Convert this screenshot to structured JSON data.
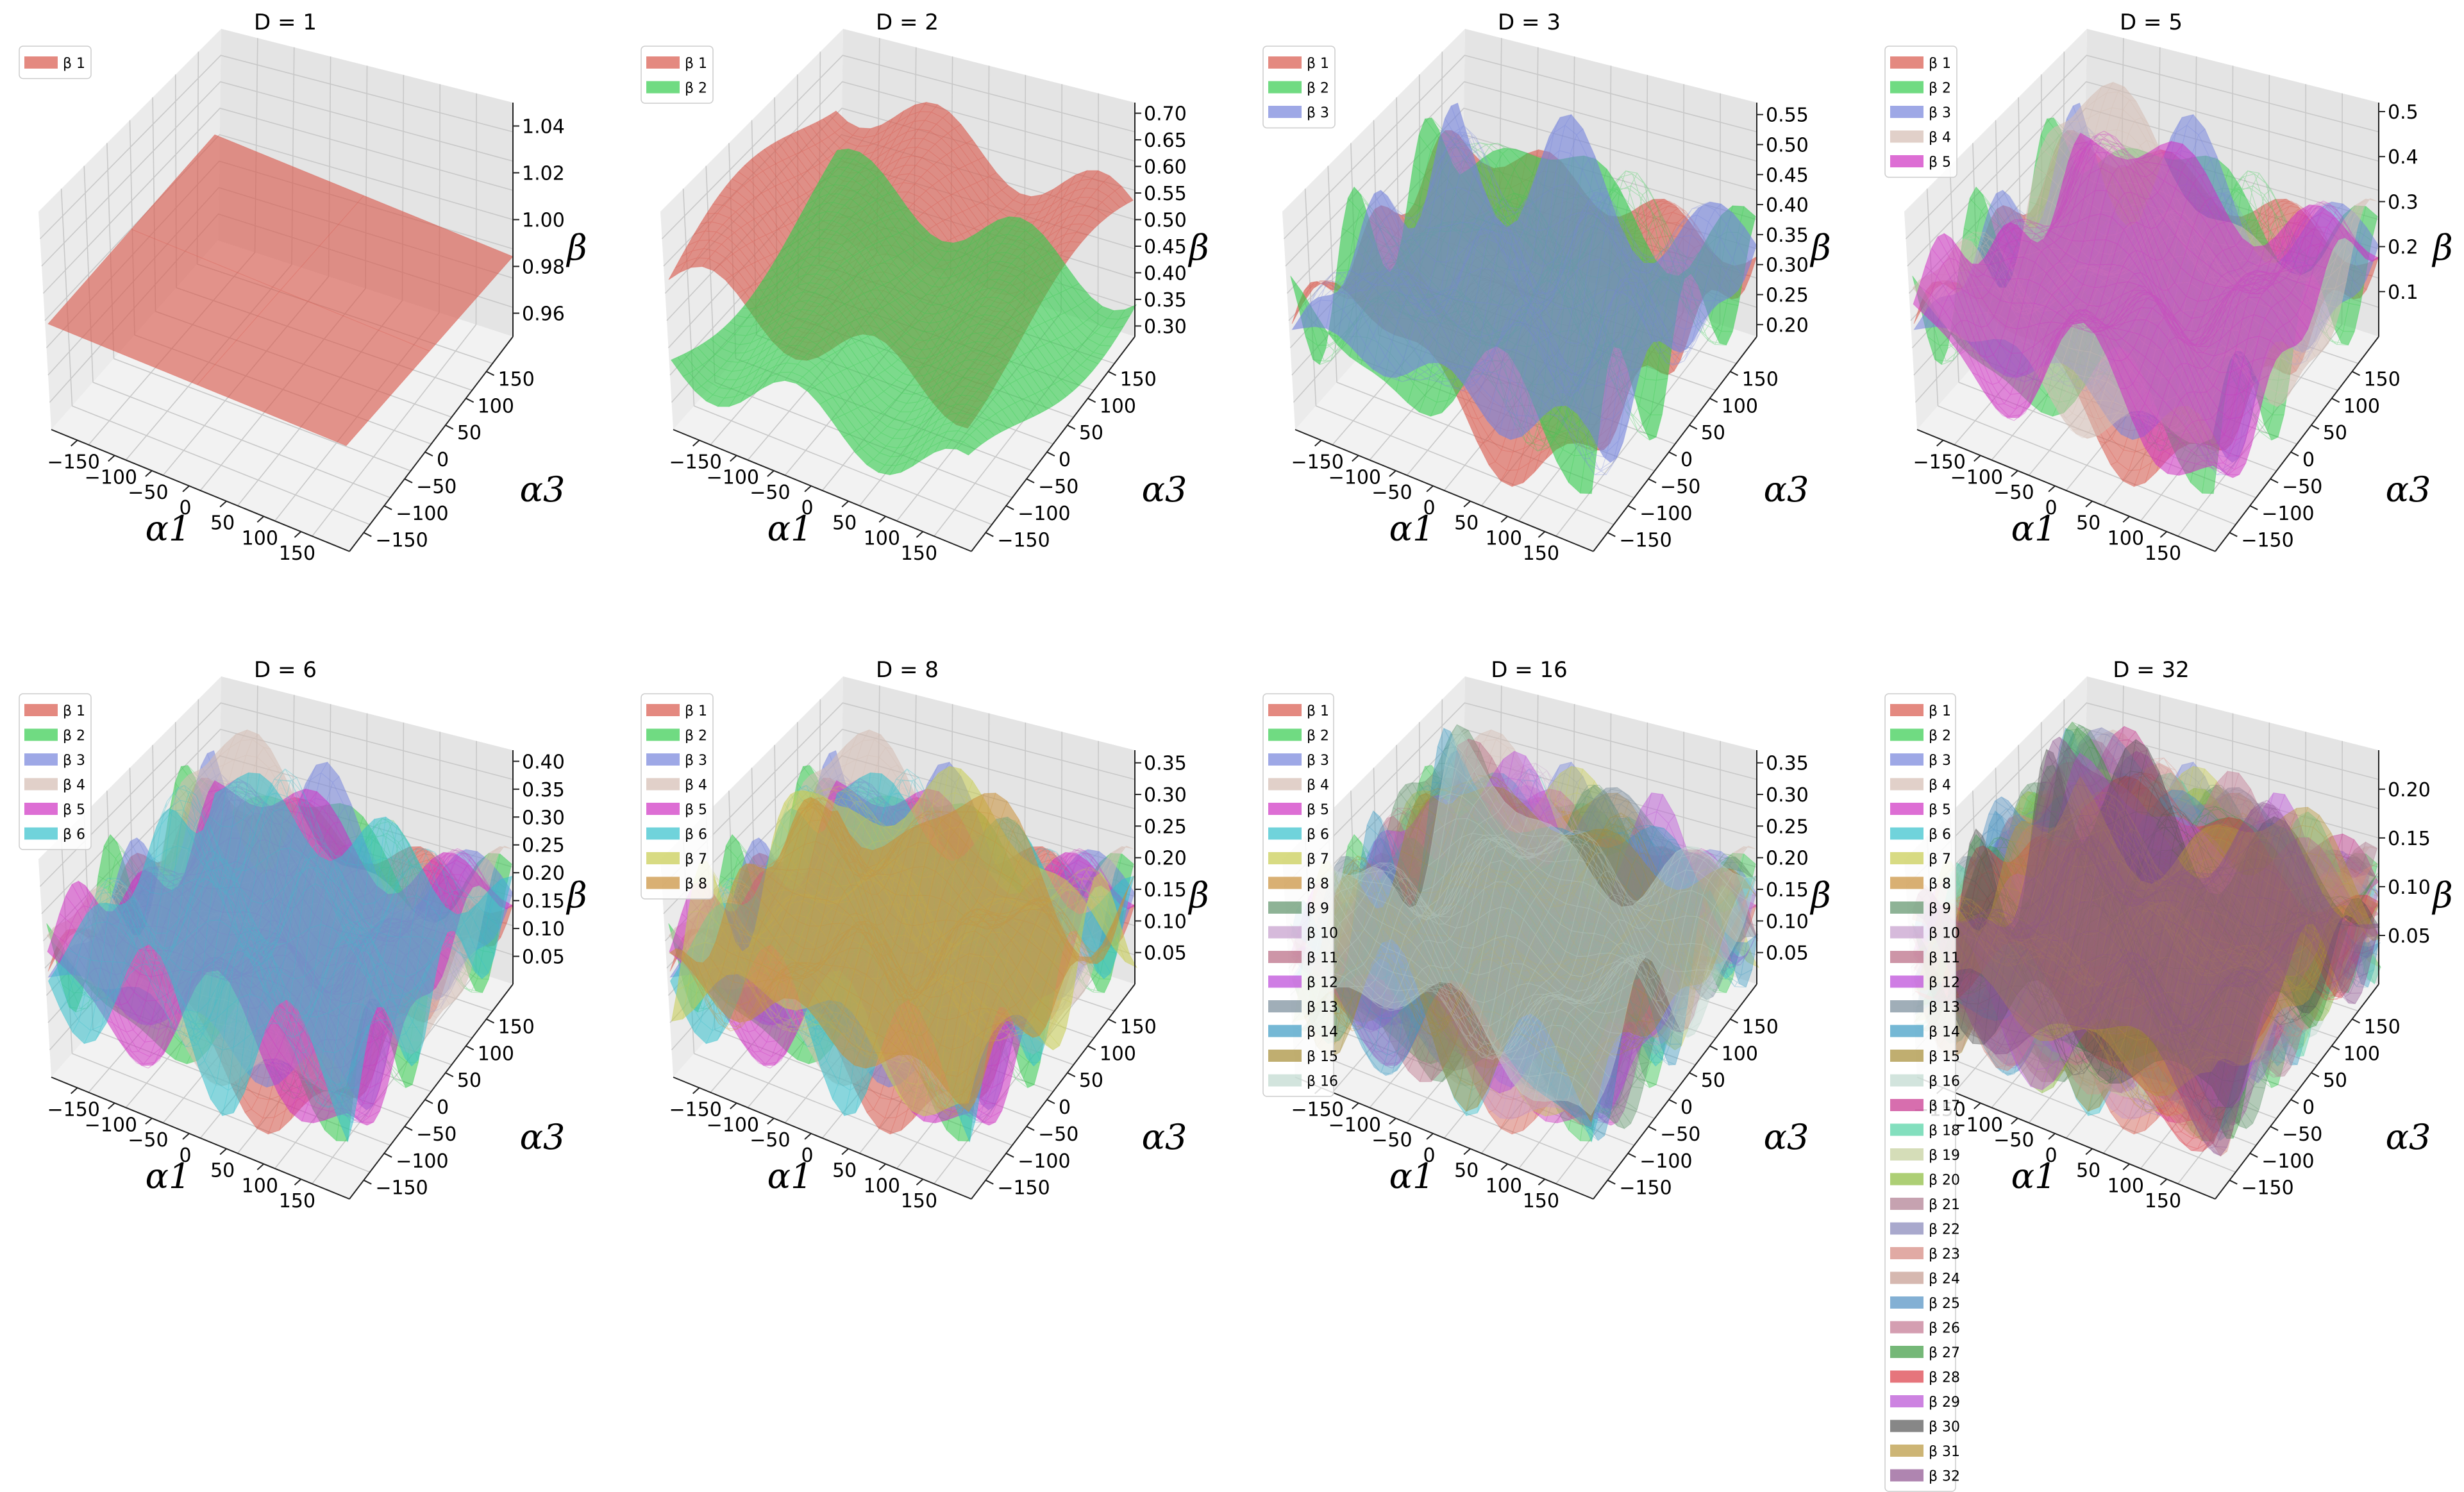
{
  "chart_data": {
    "type": "surface3d-grid",
    "panels": [
      {
        "title": "D = 1",
        "D": 1,
        "zticks": [
          "0.96",
          "0.98",
          "1.00",
          "1.02",
          "1.04"
        ],
        "zmin": 0.95,
        "zmax": 1.05
      },
      {
        "title": "D = 2",
        "D": 2,
        "zticks": [
          "0.30",
          "0.35",
          "0.40",
          "0.45",
          "0.50",
          "0.55",
          "0.60",
          "0.65",
          "0.70"
        ],
        "zmin": 0.28,
        "zmax": 0.72
      },
      {
        "title": "D = 3",
        "D": 3,
        "zticks": [
          "0.20",
          "0.25",
          "0.30",
          "0.35",
          "0.40",
          "0.45",
          "0.50",
          "0.55"
        ],
        "zmin": 0.18,
        "zmax": 0.57
      },
      {
        "title": "D = 5",
        "D": 5,
        "zticks": [
          "0.1",
          "0.2",
          "0.3",
          "0.4",
          "0.5"
        ],
        "zmin": 0.0,
        "zmax": 0.52
      },
      {
        "title": "D = 6",
        "D": 6,
        "zticks": [
          "0.05",
          "0.10",
          "0.15",
          "0.20",
          "0.25",
          "0.30",
          "0.35",
          "0.40"
        ],
        "zmin": 0.0,
        "zmax": 0.42
      },
      {
        "title": "D = 8",
        "D": 8,
        "zticks": [
          "0.05",
          "0.10",
          "0.15",
          "0.20",
          "0.25",
          "0.30",
          "0.35"
        ],
        "zmin": 0.0,
        "zmax": 0.37
      },
      {
        "title": "D = 16",
        "D": 16,
        "zticks": [
          "0.05",
          "0.10",
          "0.15",
          "0.20",
          "0.25",
          "0.30",
          "0.35"
        ],
        "zmin": 0.0,
        "zmax": 0.37
      },
      {
        "title": "D = 32",
        "D": 32,
        "zticks": [
          "0.05",
          "0.10",
          "0.15",
          "0.20"
        ],
        "zmin": 0.0,
        "zmax": 0.24
      }
    ],
    "xticks": [
      "−150",
      "−100",
      "−50",
      "0",
      "50",
      "100",
      "150"
    ],
    "yticks": [
      "−150",
      "−100",
      "−50",
      "0",
      "50",
      "100",
      "150"
    ],
    "xlabel": "α1",
    "ylabel": "α3",
    "zlabel": "β",
    "x_range": [
      -180,
      180
    ],
    "y_range": [
      -180,
      180
    ],
    "legend_prefix": "β",
    "legend_location": "top-left",
    "colors": [
      "#d9574a",
      "#33cc4d",
      "#7583dc",
      "#d4bcb2",
      "#cf30c2",
      "#33c0cc",
      "#c7cc4e",
      "#c98f38",
      "#5e936a",
      "#c59ccc",
      "#b86881",
      "#ba46d8",
      "#788b9a",
      "#3b9ac3",
      "#a58b33",
      "#bfd8cf",
      "#c6308b",
      "#4fd2a3",
      "#c3cf9a",
      "#8abb3a",
      "#ae7a8e",
      "#8484b8",
      "#d4867d",
      "#c49a8e",
      "#4e8ec2",
      "#c27590",
      "#3a9a3f",
      "#dc3a45",
      "#b84ed4",
      "#545454",
      "#b8953a",
      "#8d518e"
    ]
  }
}
